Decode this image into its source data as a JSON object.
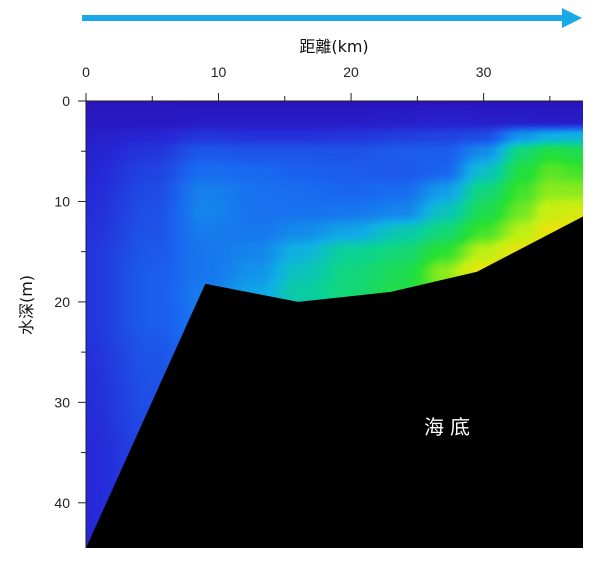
{
  "chart_data": {
    "type": "heatmap",
    "title": "",
    "xlabel": "距離(km)",
    "ylabel": "水深(m)",
    "x_axis_position": "top",
    "y_axis_direction": "down",
    "xlim": [
      0,
      37.5
    ],
    "ylim": [
      0,
      44.5
    ],
    "x_ticks": [
      0,
      10,
      20,
      30
    ],
    "y_ticks": [
      0,
      10,
      20,
      30,
      40
    ],
    "x_minor_step": 5,
    "y_minor_step": 5,
    "direction_arrow": "left-to-right",
    "colormap": "blue-cyan-green-yellow-orange (low to high)",
    "seabed_label": "海底",
    "seabed_profile": [
      {
        "x": 0,
        "y": 44.5
      },
      {
        "x": 9,
        "y": 18.2
      },
      {
        "x": 16,
        "y": 20
      },
      {
        "x": 23,
        "y": 19
      },
      {
        "x": 29.5,
        "y": 17
      },
      {
        "x": 37.5,
        "y": 11.5
      }
    ],
    "field": {
      "x": [
        0,
        5,
        9,
        13,
        16,
        20,
        24,
        27,
        30,
        33,
        35,
        37.5
      ],
      "y": [
        0,
        2,
        3.5,
        5,
        7,
        9,
        11,
        13,
        15,
        17,
        19,
        22,
        26,
        30,
        35,
        40,
        44.5
      ],
      "value_scale": "relative 0 (deep blue) to 1 (orange)",
      "values": [
        [
          0.04,
          0.04,
          0.04,
          0.04,
          0.04,
          0.04,
          0.04,
          0.04,
          0.04,
          0.04,
          0.04,
          0.04
        ],
        [
          0.05,
          0.05,
          0.06,
          0.06,
          0.06,
          0.06,
          0.07,
          0.08,
          0.07,
          0.07,
          0.06,
          0.06
        ],
        [
          0.07,
          0.09,
          0.13,
          0.12,
          0.12,
          0.13,
          0.15,
          0.16,
          0.18,
          0.35,
          0.4,
          0.42
        ],
        [
          0.08,
          0.13,
          0.21,
          0.2,
          0.2,
          0.2,
          0.22,
          0.22,
          0.32,
          0.56,
          0.62,
          0.6
        ],
        [
          0.09,
          0.16,
          0.26,
          0.25,
          0.23,
          0.22,
          0.21,
          0.24,
          0.45,
          0.62,
          0.68,
          0.66
        ],
        [
          0.1,
          0.18,
          0.3,
          0.27,
          0.26,
          0.24,
          0.26,
          0.36,
          0.55,
          0.66,
          0.72,
          0.72
        ],
        [
          0.11,
          0.19,
          0.31,
          0.27,
          0.27,
          0.28,
          0.31,
          0.46,
          0.6,
          0.7,
          0.78,
          0.8
        ],
        [
          0.12,
          0.2,
          0.29,
          0.28,
          0.32,
          0.38,
          0.48,
          0.56,
          0.66,
          0.76,
          0.84,
          0.86
        ],
        [
          0.13,
          0.21,
          0.28,
          0.31,
          0.41,
          0.52,
          0.56,
          0.64,
          0.76,
          0.84,
          0.88,
          0.9
        ],
        [
          0.13,
          0.22,
          0.28,
          0.34,
          0.46,
          0.55,
          0.6,
          0.72,
          0.84,
          0.88,
          0.9,
          0.9
        ],
        [
          0.13,
          0.22,
          0.29,
          0.38,
          0.5,
          0.56,
          0.62,
          0.7,
          0.8,
          0.85,
          0.88,
          0.88
        ],
        [
          0.13,
          0.22,
          0.28,
          0.34,
          0.42,
          0.48,
          0.54,
          0.62,
          0.7,
          0.76,
          0.8,
          0.8
        ],
        [
          0.12,
          0.2,
          0.25,
          0.3,
          0.36,
          0.42,
          0.48,
          0.54,
          0.6,
          0.64,
          0.66,
          0.66
        ],
        [
          0.11,
          0.19,
          0.23,
          0.28,
          0.34,
          0.4,
          0.45,
          0.5,
          0.55,
          0.58,
          0.6,
          0.6
        ],
        [
          0.1,
          0.17,
          0.22,
          0.27,
          0.32,
          0.38,
          0.42,
          0.48,
          0.52,
          0.55,
          0.57,
          0.57
        ],
        [
          0.1,
          0.16,
          0.21,
          0.26,
          0.31,
          0.36,
          0.4,
          0.46,
          0.5,
          0.53,
          0.55,
          0.55
        ],
        [
          0.1,
          0.15,
          0.2,
          0.25,
          0.3,
          0.35,
          0.4,
          0.45,
          0.5,
          0.52,
          0.54,
          0.54
        ]
      ]
    }
  }
}
